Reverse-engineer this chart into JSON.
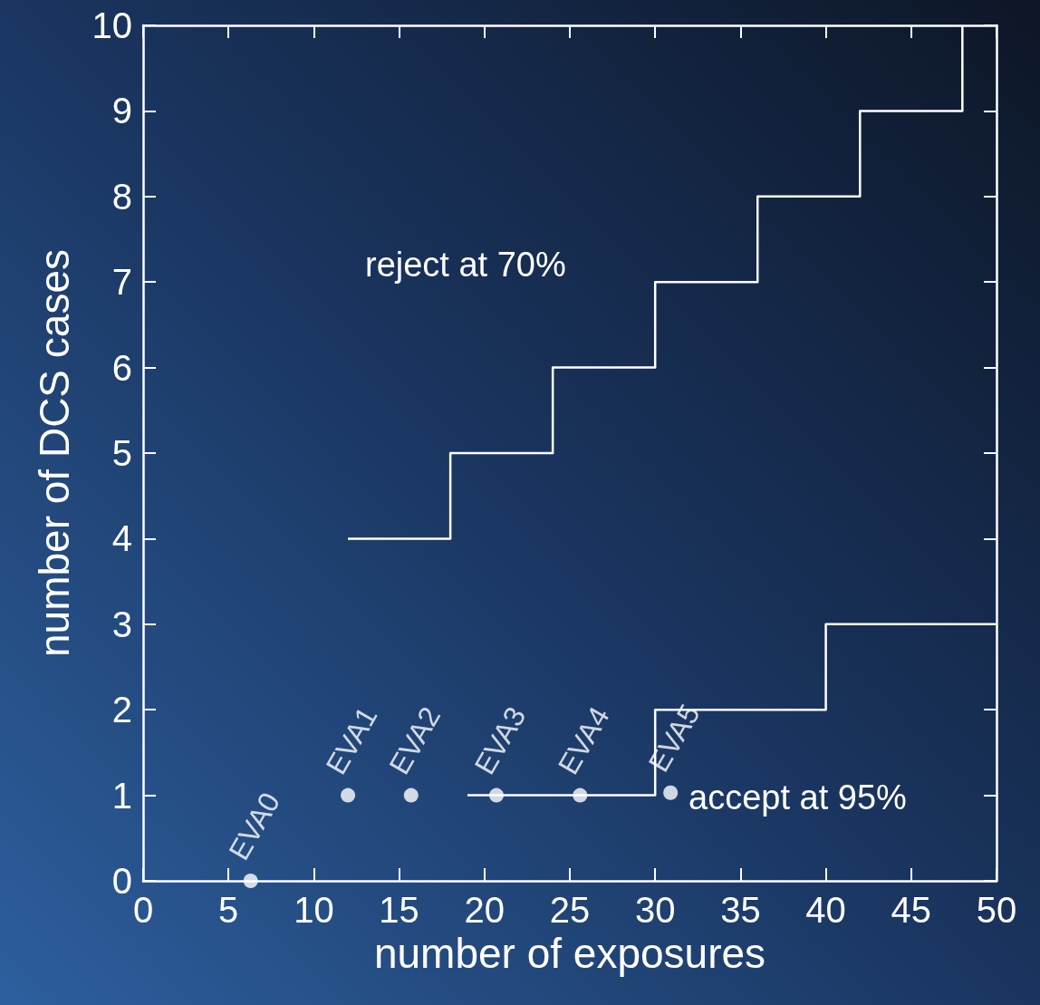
{
  "chart_data": {
    "type": "step",
    "xlabel": "number of exposures",
    "ylabel": "number of DCS cases",
    "xlim": [
      0,
      50
    ],
    "xticks": [
      0,
      5,
      10,
      15,
      20,
      25,
      30,
      35,
      40,
      45,
      50
    ],
    "ylim": [
      0,
      10
    ],
    "yticks": [
      0,
      1,
      2,
      3,
      4,
      5,
      6,
      7,
      8,
      9,
      10
    ],
    "grid": false,
    "series": [
      {
        "color": "#ffffff",
        "x": [
          12,
          18,
          24,
          30,
          36,
          42,
          48
        ],
        "values": [
          4,
          5,
          6,
          7,
          8,
          9,
          10
        ],
        "marker": "none"
      },
      {
        "color": "#ffffff",
        "x": [
          19,
          30,
          40,
          50
        ],
        "values": [
          1,
          2,
          3,
          3
        ],
        "marker": "none"
      },
      {
        "type": "scatter",
        "color": "#ffffff",
        "x": [
          6.3,
          12,
          15.7,
          20.7,
          25.6,
          30.9
        ],
        "values": [
          0,
          1,
          1,
          1,
          1,
          1.03
        ],
        "marker": "circle",
        "value_labels": [
          "EVA0",
          "EVA1",
          "EVA2",
          "EVA3",
          "EVA4",
          "EVA5"
        ]
      }
    ],
    "annotations": [
      "reject at 70%",
      "accept at 95%"
    ]
  }
}
